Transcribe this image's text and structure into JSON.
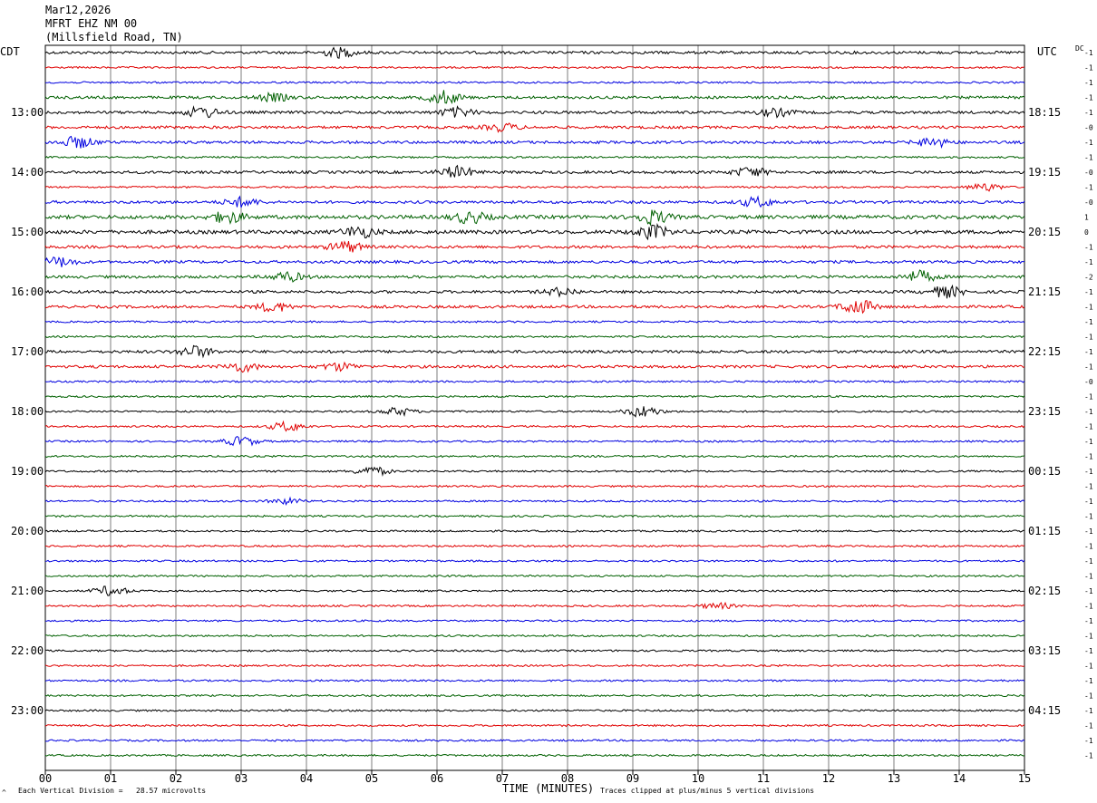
{
  "header": {
    "date": "Mar12,2026",
    "station": "MFRT EHZ NM 00",
    "location": "(Millsfield Road, TN)"
  },
  "left_axis_title": "CDT",
  "right_axis_title": "UTC",
  "dc_title": "DC",
  "footer": {
    "scale_note": "Each Vertical Division =   28.57 microvolts",
    "x_title": "TIME (MINUTES)",
    "clip_note": "Traces clipped at plus/minus 5 vertical divisions",
    "corner_mark": "^"
  },
  "colors": {
    "trace": [
      "#000000",
      "#e00000",
      "#0000e0",
      "#006000"
    ],
    "grid": "#000000",
    "text": "#000000"
  },
  "chart_data": {
    "type": "line",
    "title": "Mar12,2026",
    "xlabel": "TIME (MINUTES)",
    "ylabel": "CDT",
    "xlim": [
      0,
      15
    ],
    "x_ticks": [
      "00",
      "01",
      "02",
      "03",
      "04",
      "05",
      "06",
      "07",
      "08",
      "09",
      "10",
      "11",
      "12",
      "13",
      "14",
      "15"
    ],
    "row_count": 48,
    "left_time_labels": [
      {
        "row": 4,
        "label": "13:00"
      },
      {
        "row": 8,
        "label": "14:00"
      },
      {
        "row": 12,
        "label": "15:00"
      },
      {
        "row": 16,
        "label": "16:00"
      },
      {
        "row": 20,
        "label": "17:00"
      },
      {
        "row": 24,
        "label": "18:00"
      },
      {
        "row": 28,
        "label": "19:00"
      },
      {
        "row": 32,
        "label": "20:00"
      },
      {
        "row": 36,
        "label": "21:00"
      },
      {
        "row": 40,
        "label": "22:00"
      },
      {
        "row": 44,
        "label": "23:00"
      }
    ],
    "right_time_labels": [
      {
        "row": 4,
        "label": "18:15"
      },
      {
        "row": 8,
        "label": "19:15"
      },
      {
        "row": 12,
        "label": "20:15"
      },
      {
        "row": 16,
        "label": "21:15"
      },
      {
        "row": 20,
        "label": "22:15"
      },
      {
        "row": 24,
        "label": "23:15"
      },
      {
        "row": 28,
        "label": "00:15"
      },
      {
        "row": 32,
        "label": "01:15"
      },
      {
        "row": 36,
        "label": "02:15"
      },
      {
        "row": 40,
        "label": "03:15"
      },
      {
        "row": 44,
        "label": "04:15"
      }
    ],
    "dc_offsets": [
      "-1",
      "-1",
      "-1",
      "-1",
      "-1",
      "-0",
      "-1",
      "-1",
      "-0",
      "-1",
      "-0",
      "1",
      "0",
      "-1",
      "-1",
      "-2",
      "-1",
      "-1",
      "-1",
      "-1",
      "-1",
      "-1",
      "-0",
      "-1",
      "-1",
      "-1",
      "-1",
      "-1",
      "-1",
      "-1",
      "-1",
      "-1",
      "-1",
      "-1",
      "-1",
      "-1",
      "-1",
      "-1",
      "-1",
      "-1",
      "-1",
      "-1",
      "-1",
      "-1",
      "-1",
      "-1",
      "-1",
      "-1"
    ],
    "amplitude": [
      3,
      2,
      2,
      3,
      3,
      3,
      3,
      2,
      3,
      2,
      3,
      4,
      4,
      3,
      3,
      3,
      3,
      3,
      2,
      2,
      3,
      3,
      2,
      2,
      2,
      2,
      2,
      2,
      2,
      2,
      2,
      2,
      2,
      2,
      2,
      2,
      2,
      2,
      2,
      2,
      2,
      2,
      2,
      2,
      2,
      2,
      2,
      2
    ],
    "bursts": [
      {
        "row": 0,
        "minute": 4.5,
        "amp": 5
      },
      {
        "row": 3,
        "minute": 6.1,
        "amp": 7
      },
      {
        "row": 3,
        "minute": 3.5,
        "amp": 4
      },
      {
        "row": 4,
        "minute": 2.4,
        "amp": 6
      },
      {
        "row": 4,
        "minute": 6.3,
        "amp": 5
      },
      {
        "row": 4,
        "minute": 11.2,
        "amp": 4
      },
      {
        "row": 5,
        "minute": 7.0,
        "amp": 4
      },
      {
        "row": 6,
        "minute": 0.5,
        "amp": 6
      },
      {
        "row": 6,
        "minute": 13.6,
        "amp": 5
      },
      {
        "row": 8,
        "minute": 6.3,
        "amp": 6
      },
      {
        "row": 8,
        "minute": 10.8,
        "amp": 5
      },
      {
        "row": 9,
        "minute": 14.4,
        "amp": 4
      },
      {
        "row": 10,
        "minute": 3.0,
        "amp": 5
      },
      {
        "row": 10,
        "minute": 10.9,
        "amp": 5
      },
      {
        "row": 11,
        "minute": 9.3,
        "amp": 7
      },
      {
        "row": 11,
        "minute": 6.5,
        "amp": 6
      },
      {
        "row": 11,
        "minute": 2.8,
        "amp": 6
      },
      {
        "row": 12,
        "minute": 4.8,
        "amp": 6
      },
      {
        "row": 12,
        "minute": 9.3,
        "amp": 7
      },
      {
        "row": 13,
        "minute": 4.6,
        "amp": 6
      },
      {
        "row": 14,
        "minute": 0.2,
        "amp": 5
      },
      {
        "row": 15,
        "minute": 3.7,
        "amp": 5
      },
      {
        "row": 15,
        "minute": 13.4,
        "amp": 6
      },
      {
        "row": 16,
        "minute": 13.8,
        "amp": 6
      },
      {
        "row": 16,
        "minute": 7.9,
        "amp": 4
      },
      {
        "row": 17,
        "minute": 12.45,
        "amp": 8
      },
      {
        "row": 17,
        "minute": 3.5,
        "amp": 5
      },
      {
        "row": 20,
        "minute": 2.3,
        "amp": 6
      },
      {
        "row": 21,
        "minute": 3.0,
        "amp": 5
      },
      {
        "row": 21,
        "minute": 4.5,
        "amp": 4
      },
      {
        "row": 24,
        "minute": 5.4,
        "amp": 4
      },
      {
        "row": 24,
        "minute": 9.15,
        "amp": 6
      },
      {
        "row": 25,
        "minute": 3.7,
        "amp": 5
      },
      {
        "row": 26,
        "minute": 3.0,
        "amp": 5
      },
      {
        "row": 28,
        "minute": 5.0,
        "amp": 5
      },
      {
        "row": 30,
        "minute": 3.7,
        "amp": 3
      },
      {
        "row": 36,
        "minute": 1.0,
        "amp": 5
      },
      {
        "row": 37,
        "minute": 10.3,
        "amp": 3
      }
    ]
  }
}
